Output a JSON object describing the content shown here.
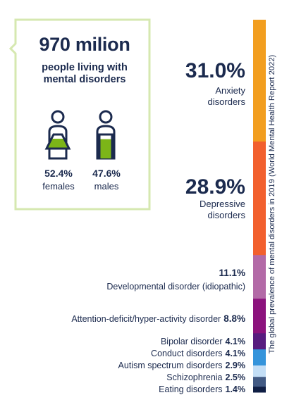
{
  "summary": {
    "total": "970 milion",
    "subtitle_line1": "people living with",
    "subtitle_line2": "mental disorders",
    "females_pct": "52.4%",
    "females_label": "females",
    "males_pct": "47.6%",
    "males_label": "males",
    "females_share": 0.524,
    "males_share": 0.476,
    "accent_color": "#7cb518",
    "frame_color": "#d6e8b0"
  },
  "side_note": "The global prevalence of mental disorders in 2019 (World Mental Health Report 2022)",
  "chart_data": {
    "type": "bar",
    "orientation": "vertical-stacked",
    "categories": [
      "Anxiety disorders",
      "Depressive disorders",
      "Developmental disorder (idiopathic)",
      "Attention-deficit/hyper-activity disorder",
      "Bipolar disorder",
      "Conduct disorders",
      "Autism spectrum disorders",
      "Schizophrenia",
      "Eating disorders"
    ],
    "values": [
      31.0,
      28.9,
      11.1,
      8.8,
      4.1,
      4.1,
      2.9,
      2.5,
      1.4
    ],
    "value_labels": [
      "31.0%",
      "28.9%",
      "11.1%",
      "8.8%",
      "4.1%",
      "4.1%",
      "2.9%",
      "2.5%",
      "1.4%"
    ],
    "colors": [
      "#f29e1f",
      "#f2602e",
      "#b36aa7",
      "#8c137d",
      "#581c7f",
      "#3594db",
      "#c3def6",
      "#425a84",
      "#0f1e44"
    ],
    "labels": {
      "anxiety_line1": "Anxiety",
      "anxiety_line2": "disorders",
      "depressive_line1": "Depressive",
      "depressive_line2": "disorders"
    }
  }
}
